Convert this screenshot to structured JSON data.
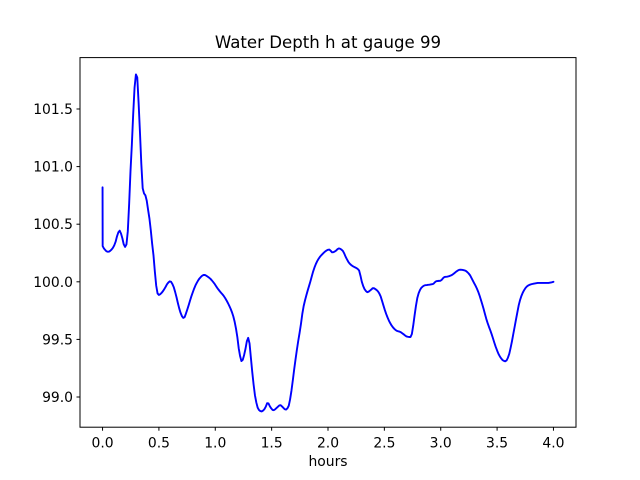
{
  "figure": {
    "background": "#ffffff",
    "title": "Water Depth h at gauge 99",
    "xlabel": "hours"
  },
  "chart_data": {
    "type": "line",
    "title": "Water Depth h at gauge 99",
    "xlabel": "hours",
    "ylabel": "",
    "xlim": [
      -0.2,
      4.2
    ],
    "ylim": [
      98.738,
      101.946
    ],
    "xticks": [
      0.0,
      0.5,
      1.0,
      1.5,
      2.0,
      2.5,
      3.0,
      3.5,
      4.0
    ],
    "xtick_labels": [
      "0.0",
      "0.5",
      "1.0",
      "1.5",
      "2.0",
      "2.5",
      "3.0",
      "3.5",
      "4.0"
    ],
    "yticks": [
      99.0,
      99.5,
      100.0,
      100.5,
      101.0,
      101.5
    ],
    "ytick_labels": [
      "99.0",
      "99.5",
      "100.0",
      "100.5",
      "101.0",
      "101.5"
    ],
    "grid": false,
    "legend_position": null,
    "line_color": "#0000ff",
    "line_width": 1.9,
    "axes_color": "#000000",
    "text_color": "#000000",
    "series": [
      {
        "name": "h",
        "x": [
          0.0,
          0.001,
          0.012,
          0.02,
          0.032,
          0.044,
          0.056,
          0.068,
          0.08,
          0.092,
          0.104,
          0.116,
          0.128,
          0.14,
          0.152,
          0.164,
          0.176,
          0.188,
          0.2,
          0.212,
          0.224,
          0.236,
          0.248,
          0.26,
          0.272,
          0.284,
          0.296,
          0.308,
          0.32,
          0.332,
          0.344,
          0.356,
          0.368,
          0.38,
          0.392,
          0.404,
          0.416,
          0.428,
          0.44,
          0.452,
          0.464,
          0.476,
          0.488,
          0.5,
          0.512,
          0.524,
          0.536,
          0.548,
          0.56,
          0.572,
          0.584,
          0.596,
          0.608,
          0.62,
          0.632,
          0.644,
          0.656,
          0.668,
          0.68,
          0.692,
          0.704,
          0.716,
          0.728,
          0.74,
          0.752,
          0.764,
          0.776,
          0.788,
          0.8,
          0.812,
          0.824,
          0.836,
          0.848,
          0.86,
          0.872,
          0.884,
          0.896,
          0.908,
          0.92,
          0.932,
          0.944,
          0.956,
          0.968,
          0.98,
          0.992,
          1.004,
          1.016,
          1.028,
          1.04,
          1.052,
          1.064,
          1.076,
          1.088,
          1.1,
          1.112,
          1.124,
          1.136,
          1.148,
          1.16,
          1.172,
          1.184,
          1.196,
          1.208,
          1.22,
          1.232,
          1.244,
          1.256,
          1.268,
          1.28,
          1.292,
          1.304,
          1.316,
          1.328,
          1.34,
          1.352,
          1.364,
          1.376,
          1.388,
          1.4,
          1.412,
          1.424,
          1.436,
          1.448,
          1.46,
          1.472,
          1.484,
          1.496,
          1.508,
          1.52,
          1.532,
          1.544,
          1.556,
          1.568,
          1.58,
          1.592,
          1.604,
          1.616,
          1.628,
          1.64,
          1.652,
          1.664,
          1.676,
          1.688,
          1.7,
          1.712,
          1.724,
          1.736,
          1.748,
          1.76,
          1.772,
          1.784,
          1.796,
          1.808,
          1.82,
          1.832,
          1.844,
          1.856,
          1.868,
          1.88,
          1.892,
          1.904,
          1.916,
          1.928,
          1.94,
          1.952,
          1.964,
          1.976,
          1.988,
          2.0,
          2.012,
          2.024,
          2.036,
          2.048,
          2.06,
          2.072,
          2.084,
          2.096,
          2.108,
          2.12,
          2.132,
          2.144,
          2.156,
          2.168,
          2.18,
          2.192,
          2.204,
          2.216,
          2.228,
          2.24,
          2.252,
          2.264,
          2.276,
          2.288,
          2.3,
          2.312,
          2.324,
          2.336,
          2.348,
          2.36,
          2.372,
          2.384,
          2.396,
          2.408,
          2.42,
          2.432,
          2.444,
          2.456,
          2.468,
          2.48,
          2.492,
          2.504,
          2.516,
          2.528,
          2.54,
          2.552,
          2.564,
          2.576,
          2.588,
          2.6,
          2.612,
          2.624,
          2.636,
          2.648,
          2.66,
          2.672,
          2.684,
          2.696,
          2.708,
          2.72,
          2.732,
          2.744,
          2.756,
          2.768,
          2.78,
          2.792,
          2.804,
          2.816,
          2.828,
          2.84,
          2.852,
          2.864,
          2.876,
          2.888,
          2.9,
          2.912,
          2.924,
          2.936,
          2.948,
          2.96,
          2.972,
          2.984,
          2.996,
          3.008,
          3.02,
          3.032,
          3.044,
          3.056,
          3.068,
          3.08,
          3.092,
          3.104,
          3.116,
          3.128,
          3.14,
          3.152,
          3.164,
          3.176,
          3.188,
          3.2,
          3.212,
          3.224,
          3.236,
          3.248,
          3.26,
          3.272,
          3.284,
          3.296,
          3.308,
          3.32,
          3.332,
          3.344,
          3.356,
          3.368,
          3.38,
          3.392,
          3.404,
          3.416,
          3.428,
          3.44,
          3.452,
          3.464,
          3.476,
          3.488,
          3.5,
          3.512,
          3.524,
          3.536,
          3.548,
          3.56,
          3.572,
          3.584,
          3.596,
          3.608,
          3.62,
          3.632,
          3.644,
          3.656,
          3.668,
          3.68,
          3.692,
          3.704,
          3.716,
          3.728,
          3.74,
          3.752,
          3.764,
          3.776,
          3.788,
          3.8,
          3.812,
          3.824,
          3.836,
          3.848,
          3.86,
          3.872,
          3.884,
          3.896,
          3.908,
          3.92,
          3.932,
          3.944,
          3.956,
          3.968,
          3.98,
          4.0
        ],
        "y": [
          100.82,
          100.31,
          100.29,
          100.28,
          100.267,
          100.261,
          100.261,
          100.269,
          100.28,
          100.295,
          100.317,
          100.348,
          100.394,
          100.429,
          100.444,
          100.418,
          100.377,
          100.325,
          100.303,
          100.324,
          100.439,
          100.677,
          100.961,
          101.19,
          101.458,
          101.686,
          101.8,
          101.773,
          101.55,
          101.296,
          101.023,
          100.812,
          100.767,
          100.751,
          100.705,
          100.625,
          100.549,
          100.448,
          100.33,
          100.229,
          100.089,
          99.967,
          99.899,
          99.886,
          99.893,
          99.904,
          99.919,
          99.937,
          99.957,
          99.979,
          99.994,
          100.004,
          100.0,
          99.98,
          99.953,
          99.912,
          99.867,
          99.816,
          99.77,
          99.731,
          99.702,
          99.687,
          99.693,
          99.725,
          99.76,
          99.797,
          99.837,
          99.874,
          99.908,
          99.94,
          99.968,
          99.991,
          100.012,
          100.029,
          100.042,
          100.053,
          100.059,
          100.059,
          100.053,
          100.045,
          100.037,
          100.027,
          100.014,
          100.0,
          99.985,
          99.967,
          99.949,
          99.933,
          99.918,
          99.904,
          99.891,
          99.876,
          99.858,
          99.838,
          99.816,
          99.792,
          99.766,
          99.736,
          99.7,
          99.653,
          99.593,
          99.519,
          99.423,
          99.356,
          99.312,
          99.323,
          99.365,
          99.418,
          99.484,
          99.513,
          99.465,
          99.341,
          99.217,
          99.108,
          99.015,
          98.953,
          98.908,
          98.887,
          98.878,
          98.875,
          98.882,
          98.895,
          98.916,
          98.946,
          98.944,
          98.92,
          98.902,
          98.888,
          98.886,
          98.894,
          98.905,
          98.916,
          98.927,
          98.929,
          98.918,
          98.906,
          98.894,
          98.891,
          98.902,
          98.925,
          98.981,
          99.056,
          99.146,
          99.24,
          99.327,
          99.41,
          99.487,
          99.557,
          99.634,
          99.721,
          99.789,
          99.839,
          99.883,
          99.925,
          99.964,
          100.004,
          100.047,
          100.089,
          100.124,
          100.154,
          100.179,
          100.199,
          100.216,
          100.23,
          100.242,
          100.254,
          100.264,
          100.272,
          100.278,
          100.28,
          100.269,
          100.256,
          100.257,
          100.263,
          100.271,
          100.283,
          100.29,
          100.287,
          100.279,
          100.268,
          100.246,
          100.218,
          100.195,
          100.174,
          100.158,
          100.147,
          100.138,
          100.131,
          100.125,
          100.119,
          100.111,
          100.098,
          100.053,
          100.0,
          99.964,
          99.937,
          99.92,
          99.91,
          99.914,
          99.923,
          99.933,
          99.944,
          99.944,
          99.937,
          99.928,
          99.916,
          99.897,
          99.871,
          99.833,
          99.794,
          99.756,
          99.721,
          99.691,
          99.664,
          99.641,
          99.621,
          99.605,
          99.592,
          99.581,
          99.574,
          99.57,
          99.567,
          99.561,
          99.552,
          99.544,
          99.534,
          99.526,
          99.523,
          99.521,
          99.521,
          99.547,
          99.62,
          99.708,
          99.79,
          99.858,
          99.901,
          99.929,
          99.948,
          99.959,
          99.967,
          99.971,
          99.972,
          99.974,
          99.975,
          99.977,
          99.979,
          99.983,
          99.996,
          100.005,
          100.007,
          100.008,
          100.009,
          100.016,
          100.031,
          100.041,
          100.043,
          100.044,
          100.047,
          100.051,
          100.056,
          100.062,
          100.071,
          100.081,
          100.09,
          100.098,
          100.104,
          100.105,
          100.104,
          100.102,
          100.099,
          100.094,
          100.084,
          100.072,
          100.057,
          100.035,
          100.012,
          99.989,
          99.967,
          99.943,
          99.915,
          99.882,
          99.845,
          99.806,
          99.766,
          99.722,
          99.679,
          99.642,
          99.609,
          99.578,
          99.544,
          99.508,
          99.47,
          99.435,
          99.404,
          99.375,
          99.353,
          99.335,
          99.321,
          99.314,
          99.31,
          99.317,
          99.341,
          99.375,
          99.427,
          99.484,
          99.548,
          99.611,
          99.674,
          99.736,
          99.797,
          99.843,
          99.878,
          99.906,
          99.928,
          99.946,
          99.959,
          99.968,
          99.974,
          99.978,
          99.981,
          99.984,
          99.986,
          99.988,
          99.99,
          99.99,
          99.99,
          99.99,
          99.99,
          99.99,
          99.99,
          99.99,
          99.99,
          99.992,
          99.994,
          100.0
        ]
      }
    ]
  }
}
